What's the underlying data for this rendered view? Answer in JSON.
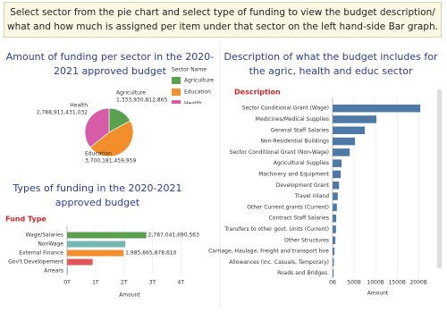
{
  "instruction": "Select sector from the pie chart and select type of funding to view the budget description/ what and how much is assigned per item under that sector on the left hand-side Bar graph.",
  "chart_data": [
    {
      "type": "pie",
      "title": "Amount of funding per sector in the 2020-2021 approved budget",
      "legend_title": "Sector Name",
      "categories": [
        "Agriculture",
        "Education",
        "Health"
      ],
      "values": [
        1333930812865,
        3700181459959,
        2788911431032
      ],
      "value_labels": [
        "1,333,930,812,865",
        "3,700,181,459,959",
        "2,788,911,431,032"
      ],
      "colors": [
        "#59a14f",
        "#f28e2b",
        "#d75ca8"
      ]
    },
    {
      "type": "bar",
      "title": "Types of funding in the 2020-2021 approved budget",
      "column_header": "Fund Type",
      "x_label": "Amount",
      "categories": [
        "Wage/Salaries",
        "NonWage",
        "External Finance",
        "Gov't Developement",
        "Arrears"
      ],
      "values": [
        2787041690563,
        2050000000000,
        1985865878610,
        900000000000,
        20000000000
      ],
      "value_labels": [
        "2,787,041,690,563",
        null,
        "1,985,865,878,610",
        null,
        null
      ],
      "colors": [
        "#59a14f",
        "#76b7b2",
        "#f28e2b",
        "#e15759",
        "#4e79a7"
      ],
      "xlim": [
        0,
        4400000000000
      ],
      "xticks": [
        {
          "value": 0,
          "label": "0T"
        },
        {
          "value": 1000000000000,
          "label": "1T"
        },
        {
          "value": 2000000000000,
          "label": "2T"
        },
        {
          "value": 3000000000000,
          "label": "3T"
        },
        {
          "value": 4000000000000,
          "label": "4T"
        }
      ],
      "grid": true
    },
    {
      "type": "bar",
      "title": "Description of what the budget includes for the agric, health and educ sector",
      "column_header": "Description",
      "x_label": "Amount",
      "categories": [
        "Sector Conditional Grant (Wage)",
        "Medicines/Medical Supplies",
        "General Staff Salaries",
        "Non-Residential Buildings",
        "Sector Conditional Grant (Non-Wage)",
        "Agricultural Supplies",
        "Machinery and Equipment",
        "Development Grant",
        "Travel inland",
        "Other Current grants (Current)",
        "Contract Staff Salaries",
        "Transfers to other govt. Units (Current)",
        "Other Structures",
        "Carriage, Haulage, Freight and transport hire",
        "Allowances (Inc. Casuals, Temporary)",
        "Roads and Bridges."
      ],
      "values": [
        2040000000000,
        1020000000000,
        750000000000,
        520000000000,
        400000000000,
        210000000000,
        190000000000,
        150000000000,
        120000000000,
        100000000000,
        85000000000,
        80000000000,
        65000000000,
        45000000000,
        30000000000,
        25000000000
      ],
      "color": "#4e79a7",
      "xlim": [
        0,
        2100000000000
      ],
      "xticks": [
        {
          "value": 0,
          "label": "0B"
        },
        {
          "value": 500000000000,
          "label": "500B"
        },
        {
          "value": 1000000000000,
          "label": "1000B"
        },
        {
          "value": 1500000000000,
          "label": "1500B"
        },
        {
          "value": 2000000000000,
          "label": "2000B"
        }
      ],
      "grid": true
    }
  ]
}
